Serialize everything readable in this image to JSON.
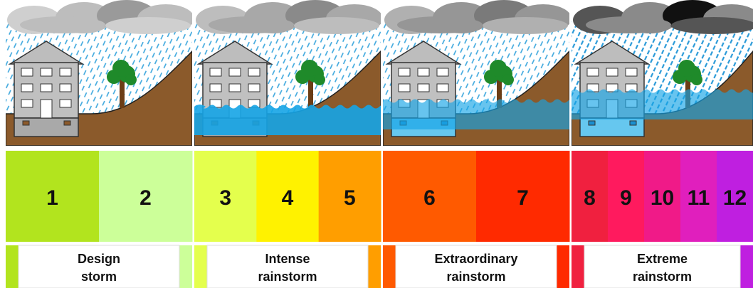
{
  "panels": [
    {
      "label": "Design storm",
      "levels": [
        {
          "label": 1,
          "color": "#b2e41e"
        },
        {
          "label": 2,
          "color": "#ccff99"
        }
      ]
    },
    {
      "label": "Intense rainstorm",
      "levels": [
        {
          "label": 3,
          "color": "#e4ff4d"
        },
        {
          "label": 4,
          "color": "#fff200"
        },
        {
          "label": 5,
          "color": "#ff9e00"
        }
      ]
    },
    {
      "label": "Extraordinary rainstorm",
      "levels": [
        {
          "label": 6,
          "color": "#ff5a00"
        },
        {
          "label": 7,
          "color": "#ff2a00"
        }
      ]
    },
    {
      "label": "Extreme rainstorm",
      "levels": [
        {
          "label": 8,
          "color": "#f0203f"
        },
        {
          "label": 9,
          "color": "#ff1a5e"
        },
        {
          "label": 10,
          "color": "#f01a88"
        },
        {
          "label": 11,
          "color": "#e01fbd"
        },
        {
          "label": 12,
          "color": "#bf1fe0"
        }
      ]
    }
  ]
}
